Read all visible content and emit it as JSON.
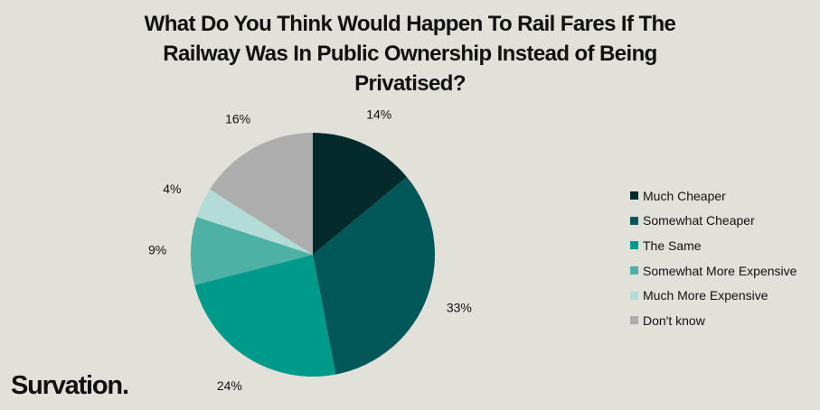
{
  "title_lines": [
    "What Do You Think Would Happen To Rail Fares If The",
    "Railway Was In Public Ownership Instead of Being",
    "Privatised?"
  ],
  "brand": "Survation.",
  "chart_data": {
    "type": "pie",
    "title": "What Do You Think Would Happen To Rail Fares If The Railway Was In Public Ownership Instead of Being Privatised?",
    "legend_position": "right",
    "slices": [
      {
        "label": "Much Cheaper",
        "value": 14,
        "display": "14%",
        "color": "#042a2b"
      },
      {
        "label": "Somewhat Cheaper",
        "value": 33,
        "display": "33%",
        "color": "#025859"
      },
      {
        "label": "The Same",
        "value": 24,
        "display": "24%",
        "color": "#009a8b"
      },
      {
        "label": "Somewhat More Expensive",
        "value": 9,
        "display": "9%",
        "color": "#4db1a6"
      },
      {
        "label": "Much More Expensive",
        "value": 4,
        "display": "4%",
        "color": "#b3dbd8"
      },
      {
        "label": "Don't know",
        "value": 16,
        "display": "16%",
        "color": "#adadad"
      }
    ]
  }
}
